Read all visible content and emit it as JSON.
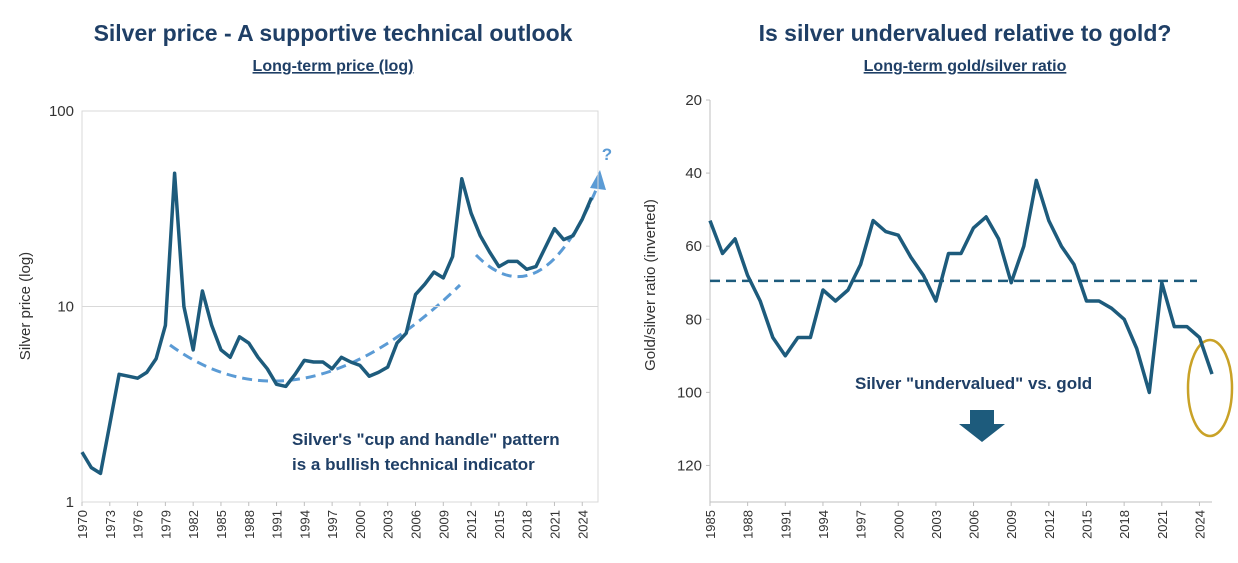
{
  "chart_data": [
    {
      "type": "line",
      "title": "Silver price - A supportive technical outlook",
      "subtitle": "Long-term price (log)",
      "y_label": "Silver price (log)",
      "log_scale": true,
      "grid": true,
      "color": "#1d5b7c",
      "x": [
        1970,
        1971,
        1972,
        1973,
        1974,
        1975,
        1976,
        1977,
        1978,
        1979,
        1980,
        1981,
        1982,
        1983,
        1984,
        1985,
        1986,
        1987,
        1988,
        1989,
        1990,
        1991,
        1992,
        1993,
        1994,
        1995,
        1996,
        1997,
        1998,
        1999,
        2000,
        2001,
        2002,
        2003,
        2004,
        2005,
        2006,
        2007,
        2008,
        2009,
        2010,
        2011,
        2012,
        2013,
        2014,
        2015,
        2016,
        2017,
        2018,
        2019,
        2020,
        2021,
        2022,
        2023,
        2024,
        2025
      ],
      "values": [
        1.8,
        1.5,
        1.4,
        2.5,
        4.5,
        4.4,
        4.3,
        4.6,
        5.4,
        8,
        48,
        10,
        6,
        12,
        8,
        6,
        5.5,
        7,
        6.5,
        5.5,
        4.8,
        4,
        3.9,
        4.5,
        5.3,
        5.2,
        5.2,
        4.8,
        5.5,
        5.2,
        5,
        4.4,
        4.6,
        4.9,
        6.5,
        7.3,
        11.5,
        13,
        15,
        14,
        18,
        45,
        30,
        23,
        19,
        16,
        17,
        17,
        15.5,
        16,
        20,
        25,
        22,
        23,
        28,
        36
      ],
      "xlim": [
        1970,
        2025.7
      ],
      "ylim": [
        1,
        100
      ],
      "yticks": [
        1,
        10,
        100
      ],
      "xticks": [
        1970,
        1973,
        1976,
        1979,
        1982,
        1985,
        1988,
        1991,
        1994,
        1997,
        2000,
        2003,
        2006,
        2009,
        2012,
        2015,
        2018,
        2021,
        2024
      ],
      "annotations": [
        "Silver's \"cup and handle\" pattern",
        "is a bullish technical indicator",
        "?"
      ]
    },
    {
      "type": "line",
      "title": "Is silver undervalued relative to gold?",
      "subtitle": "Long-term gold/silver ratio",
      "y_label": "Gold/silver ratio (inverted)",
      "y_inverted": true,
      "grid": false,
      "color": "#1d5b7c",
      "x": [
        1985,
        1986,
        1987,
        1988,
        1989,
        1990,
        1991,
        1992,
        1993,
        1994,
        1995,
        1996,
        1997,
        1998,
        1999,
        2000,
        2001,
        2002,
        2003,
        2004,
        2005,
        2006,
        2007,
        2008,
        2009,
        2010,
        2011,
        2012,
        2013,
        2014,
        2015,
        2016,
        2017,
        2018,
        2019,
        2020,
        2021,
        2022,
        2023,
        2024,
        2025
      ],
      "values": [
        53,
        62,
        58,
        68,
        75,
        85,
        90,
        85,
        85,
        72,
        75,
        72,
        65,
        53,
        56,
        57,
        63,
        68,
        75,
        62,
        62,
        55,
        52,
        58,
        70,
        60,
        42,
        53,
        60,
        65,
        75,
        75,
        77,
        80,
        88,
        100,
        70,
        82,
        82,
        85,
        95
      ],
      "reference_line": 69.5,
      "xlim": [
        1985,
        2025
      ],
      "ylim": [
        20,
        130
      ],
      "yticks": [
        20,
        40,
        60,
        80,
        100,
        120
      ],
      "xticks": [
        1985,
        1988,
        1991,
        1994,
        1997,
        2000,
        2003,
        2006,
        2009,
        2012,
        2015,
        2018,
        2021,
        2024
      ],
      "annotations": [
        "Silver \"undervalued\" vs. gold"
      ]
    }
  ]
}
